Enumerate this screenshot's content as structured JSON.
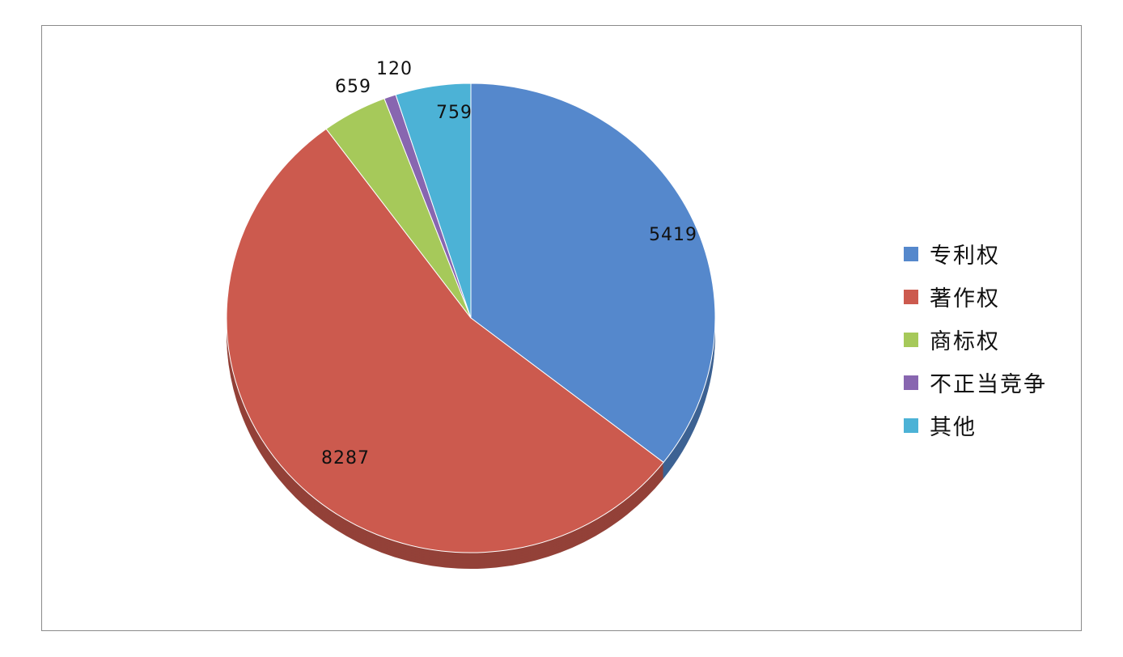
{
  "chart_data": {
    "type": "pie",
    "categories": [
      "专利权",
      "著作权",
      "商标权",
      "不正当竞争",
      "其他"
    ],
    "values": [
      5419,
      8287,
      659,
      120,
      759
    ],
    "colors": [
      "#5588cc",
      "#cc5a4e",
      "#a6c95a",
      "#8866b0",
      "#4cb2d6"
    ],
    "data_labels": [
      "5419",
      "8287",
      "659",
      "120",
      "759"
    ],
    "legend_position": "right",
    "start_angle": "12 o'clock, clockwise"
  }
}
